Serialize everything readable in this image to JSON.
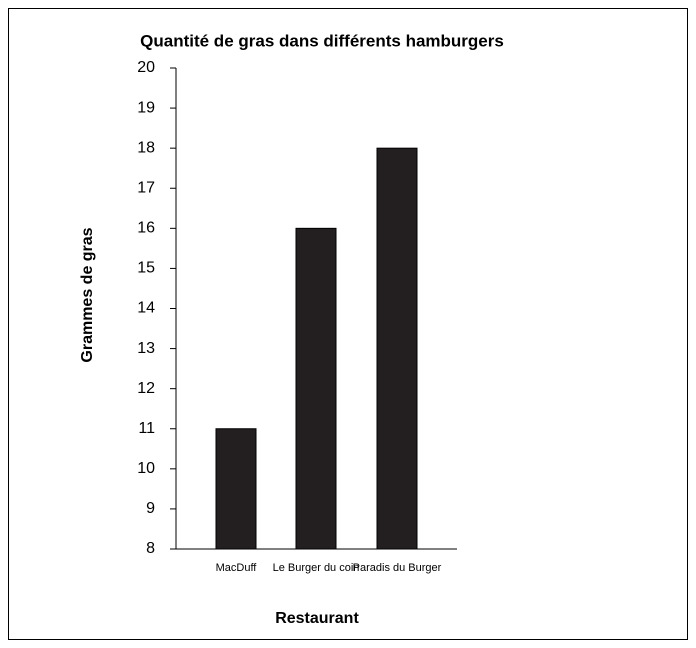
{
  "chart_data": {
    "type": "bar",
    "title": "Quantité de gras dans différents hamburgers",
    "x_label": "Restaurant",
    "y_label": "Grammes de gras",
    "categories": [
      "MacDuff",
      "Le Burger du coin",
      "Paradis du Burger"
    ],
    "values": [
      11,
      16,
      18
    ],
    "color": "#231f20",
    "ylim": [
      8,
      20
    ],
    "yticks": [
      8,
      9,
      10,
      11,
      12,
      13,
      14,
      15,
      16,
      17,
      18,
      19,
      20
    ],
    "grid": false
  }
}
